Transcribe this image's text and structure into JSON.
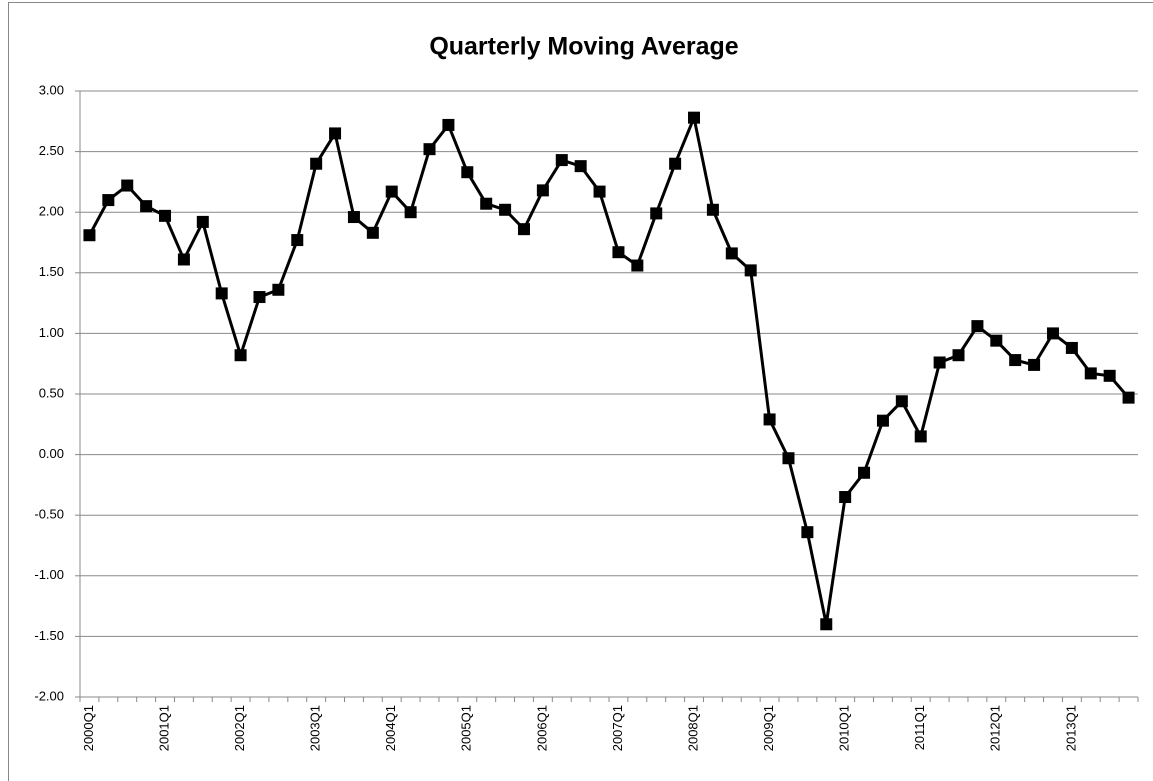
{
  "chart_data": {
    "type": "line",
    "title": "Quarterly Moving Average",
    "categories": [
      "2000Q1",
      null,
      null,
      null,
      "2001Q1",
      null,
      null,
      null,
      "2002Q1",
      null,
      null,
      null,
      "2003Q1",
      null,
      null,
      null,
      "2004Q1",
      null,
      null,
      null,
      "2005Q1",
      null,
      null,
      null,
      "2006Q1",
      null,
      null,
      null,
      "2007Q1",
      null,
      null,
      null,
      "2008Q1",
      null,
      null,
      null,
      "2009Q1",
      null,
      null,
      null,
      "2010Q1",
      null,
      null,
      null,
      "2011Q1",
      null,
      null,
      null,
      "2012Q1",
      null,
      null,
      null,
      "2013Q1",
      null,
      null,
      null
    ],
    "series": [
      {
        "color": "#000000",
        "values": [
          1.81,
          2.1,
          2.22,
          2.05,
          1.97,
          1.61,
          1.92,
          1.33,
          0.82,
          1.3,
          1.36,
          1.77,
          2.4,
          2.65,
          1.96,
          1.83,
          2.17,
          2.0,
          2.52,
          2.72,
          2.33,
          2.07,
          2.02,
          1.86,
          2.18,
          2.43,
          2.38,
          2.17,
          1.67,
          1.56,
          1.99,
          2.4,
          2.78,
          2.02,
          1.66,
          1.52,
          0.29,
          -0.03,
          -0.64,
          -1.4,
          -0.35,
          -0.15,
          0.28,
          0.44,
          0.15,
          0.76,
          0.82,
          1.06,
          0.94,
          0.78,
          0.74,
          1.0,
          0.88,
          0.67,
          0.65,
          0.47
        ]
      }
    ],
    "ylim": [
      -2,
      3
    ],
    "yticks": [
      {
        "value": -2,
        "label": "-2.00"
      },
      {
        "value": -1.5,
        "label": "-1.50"
      },
      {
        "value": -1,
        "label": "-1.00"
      },
      {
        "value": -0.5,
        "label": "-0.50"
      },
      {
        "value": 0,
        "label": "0.00"
      },
      {
        "value": 0.5,
        "label": "0.50"
      },
      {
        "value": 1,
        "label": "1.00"
      },
      {
        "value": 1.5,
        "label": "1.50"
      },
      {
        "value": 2,
        "label": "2.00"
      },
      {
        "value": 2.5,
        "label": "2.50"
      },
      {
        "value": 3,
        "label": "3.00"
      }
    ],
    "grid": true
  }
}
